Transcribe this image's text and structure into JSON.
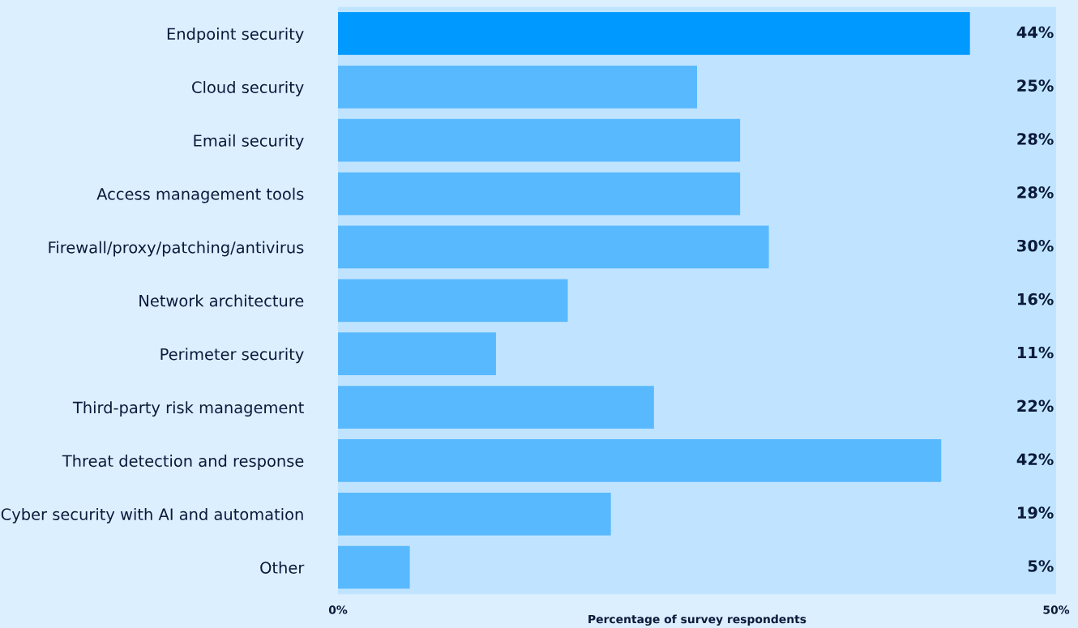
{
  "chart_data": {
    "type": "bar",
    "orientation": "horizontal",
    "xlabel": "Percentage of survey respondents",
    "categories": [
      "Endpoint security",
      "Cloud security",
      "Email security",
      "Access management tools",
      "Firewall/proxy/patching/antivirus",
      "Network architecture",
      "Perimeter security",
      "Third-party risk management",
      "Threat detection and response",
      "Cyber security with AI and automation",
      "Other"
    ],
    "values": [
      44,
      25,
      28,
      28,
      30,
      16,
      11,
      22,
      42,
      19,
      5
    ],
    "colors": [
      "#0099ff",
      "#59b9ff",
      "#59b9ff",
      "#59b9ff",
      "#59b9ff",
      "#59b9ff",
      "#59b9ff",
      "#59b9ff",
      "#59b9ff",
      "#59b9ff",
      "#59b9ff"
    ],
    "value_labels": [
      "44%",
      "25%",
      "28%",
      "28%",
      "30%",
      "16%",
      "11%",
      "22%",
      "42%",
      "19%",
      "5%"
    ],
    "xlim": [
      0,
      50
    ],
    "xticks": [
      {
        "value": 0,
        "label": "0%"
      },
      {
        "value": 50,
        "label": "50%"
      }
    ],
    "grid": false,
    "legend": false
  }
}
